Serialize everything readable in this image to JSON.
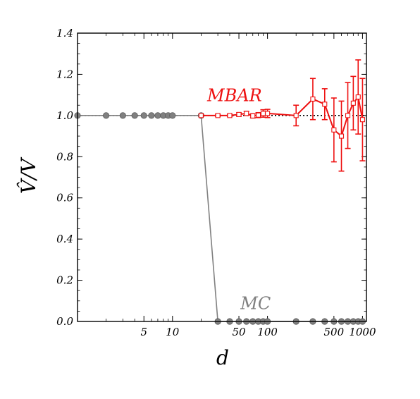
{
  "chart_data": {
    "type": "line",
    "xlabel": "d",
    "ylabel": "V̂/V",
    "xscale": "log",
    "xlim": [
      1,
      1100
    ],
    "ylim": [
      0.0,
      1.4
    ],
    "x_ticks": [
      {
        "value": 5,
        "label": "5"
      },
      {
        "value": 10,
        "label": "10"
      },
      {
        "value": 50,
        "label": "50"
      },
      {
        "value": 100,
        "label": "100"
      },
      {
        "value": 500,
        "label": "500"
      },
      {
        "value": 1000,
        "label": "1000"
      }
    ],
    "y_ticks": [
      {
        "value": 0.0,
        "label": "0.0"
      },
      {
        "value": 0.2,
        "label": "0.2"
      },
      {
        "value": 0.4,
        "label": "0.4"
      },
      {
        "value": 0.6,
        "label": "0.6"
      },
      {
        "value": 0.8,
        "label": "0.8"
      },
      {
        "value": 1.0,
        "label": "1.0"
      },
      {
        "value": 1.2,
        "label": "1.2"
      },
      {
        "value": 1.4,
        "label": "1.4"
      }
    ],
    "reference_line": {
      "y": 1.0,
      "style": "dotted",
      "color": "#000000"
    },
    "series": [
      {
        "name": "MC",
        "color": "#808080",
        "marker": "circle",
        "points": [
          {
            "x": 1,
            "y": 1.0
          },
          {
            "x": 2,
            "y": 1.0
          },
          {
            "x": 3,
            "y": 1.0
          },
          {
            "x": 4,
            "y": 1.0
          },
          {
            "x": 5,
            "y": 1.0
          },
          {
            "x": 6,
            "y": 1.0
          },
          {
            "x": 7,
            "y": 1.0
          },
          {
            "x": 8,
            "y": 1.0
          },
          {
            "x": 9,
            "y": 1.0
          },
          {
            "x": 10,
            "y": 1.0
          },
          {
            "x": 20,
            "y": 1.0
          },
          {
            "x": 30,
            "y": 0.0
          },
          {
            "x": 40,
            "y": 0.0
          },
          {
            "x": 50,
            "y": 0.0
          },
          {
            "x": 60,
            "y": 0.0
          },
          {
            "x": 70,
            "y": 0.0
          },
          {
            "x": 80,
            "y": 0.0
          },
          {
            "x": 90,
            "y": 0.0
          },
          {
            "x": 100,
            "y": 0.0
          },
          {
            "x": 200,
            "y": 0.0
          },
          {
            "x": 300,
            "y": 0.0
          },
          {
            "x": 400,
            "y": 0.0
          },
          {
            "x": 500,
            "y": 0.0
          },
          {
            "x": 600,
            "y": 0.0
          },
          {
            "x": 700,
            "y": 0.0
          },
          {
            "x": 800,
            "y": 0.0
          },
          {
            "x": 900,
            "y": 0.0
          },
          {
            "x": 1000,
            "y": 0.0
          }
        ]
      },
      {
        "name": "MBAR",
        "color": "#ee1111",
        "marker": "open-square",
        "points": [
          {
            "x": 20,
            "y": 1.0,
            "err": 0.0
          },
          {
            "x": 30,
            "y": 1.0,
            "err": 0.005
          },
          {
            "x": 40,
            "y": 1.0,
            "err": 0.005
          },
          {
            "x": 50,
            "y": 1.005,
            "err": 0.008
          },
          {
            "x": 60,
            "y": 1.01,
            "err": 0.01
          },
          {
            "x": 70,
            "y": 0.998,
            "err": 0.01
          },
          {
            "x": 80,
            "y": 1.002,
            "err": 0.012
          },
          {
            "x": 90,
            "y": 1.01,
            "err": 0.018
          },
          {
            "x": 100,
            "y": 1.01,
            "err": 0.02
          },
          {
            "x": 200,
            "y": 1.0,
            "err": 0.05
          },
          {
            "x": 300,
            "y": 1.08,
            "err": 0.1
          },
          {
            "x": 400,
            "y": 1.055,
            "err": 0.075
          },
          {
            "x": 500,
            "y": 0.93,
            "err": 0.155
          },
          {
            "x": 600,
            "y": 0.9,
            "err": 0.17
          },
          {
            "x": 700,
            "y": 1.0,
            "err": 0.16
          },
          {
            "x": 800,
            "y": 1.06,
            "err": 0.13
          },
          {
            "x": 900,
            "y": 1.09,
            "err": 0.18
          },
          {
            "x": 1000,
            "y": 0.98,
            "err": 0.2
          }
        ]
      }
    ]
  }
}
